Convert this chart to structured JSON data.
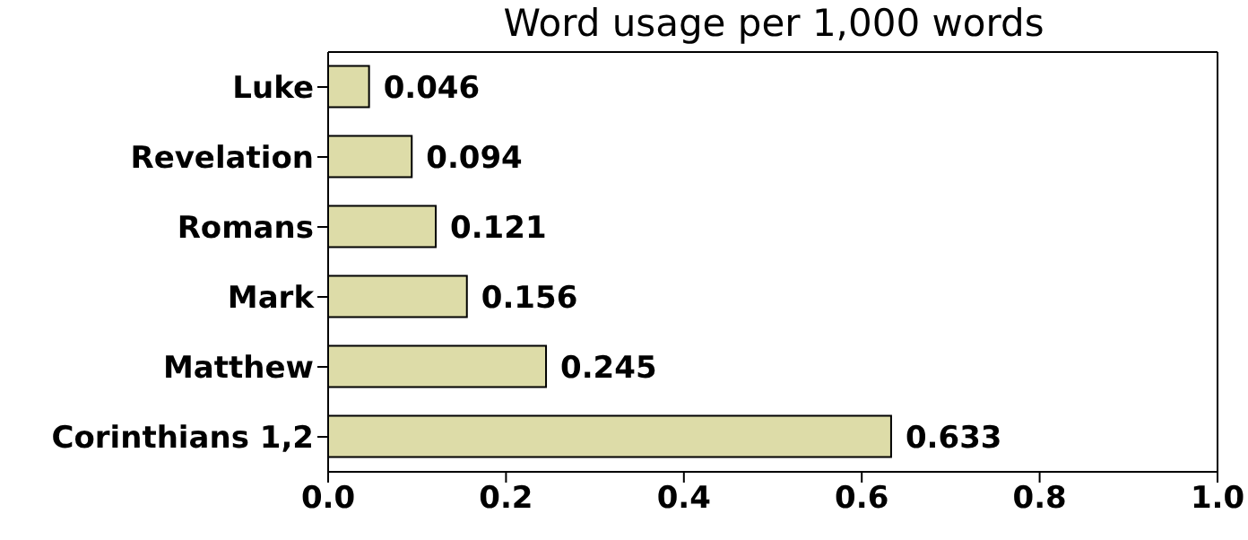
{
  "chart_data": {
    "type": "bar",
    "orientation": "horizontal",
    "title": "Word usage per 1,000 words",
    "categories": [
      "Luke",
      "Revelation",
      "Romans",
      "Mark",
      "Matthew",
      "Corinthians 1,2"
    ],
    "values": [
      0.046,
      0.094,
      0.121,
      0.156,
      0.245,
      0.633
    ],
    "color": "#dddca8",
    "xlim": [
      0,
      1
    ],
    "xticks": [
      {
        "value": 0,
        "label": "0.0"
      },
      0.2,
      0.4,
      0.6,
      0.8,
      {
        "value": 1,
        "label": "1.0"
      }
    ],
    "data_labels": true,
    "grid": false,
    "legend": false
  }
}
